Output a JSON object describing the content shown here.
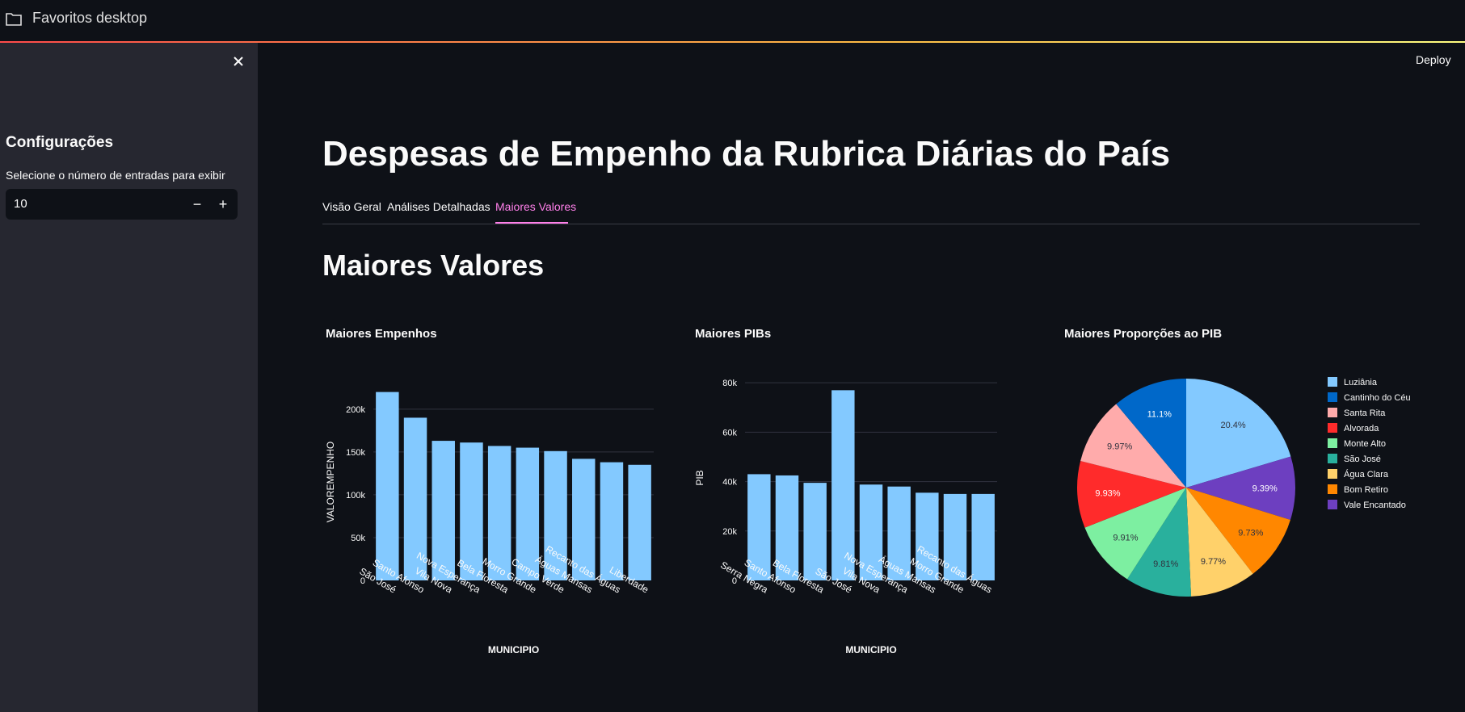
{
  "app": {
    "title": "Favoritos desktop",
    "deploy_label": "Deploy"
  },
  "sidebar": {
    "heading": "Configurações",
    "input_label": "Selecione o número de entradas para exibir",
    "input_value": "10",
    "minus": "−",
    "plus": "+"
  },
  "main": {
    "title": "Despesas de Empenho da Rubrica Diárias do País",
    "tabs": [
      {
        "label": "Visão Geral"
      },
      {
        "label": "Análises Detalhadas"
      },
      {
        "label": "Maiores Valores"
      }
    ],
    "active_tab": 2,
    "section_title": "Maiores Valores"
  },
  "colors": {
    "bar": "#83c9ff",
    "grid": "#31333f",
    "accent": "#ff80ea",
    "background": "#0e1117"
  },
  "chart_data": [
    {
      "type": "bar",
      "title": "Maiores Empenhos",
      "xlabel": "MUNICIPIO",
      "ylabel": "VALOREMPENHO",
      "categories": [
        "São José",
        "Santo Afonso",
        "Vila Nova",
        "Nova Esperança",
        "Bela Floresta",
        "Morro Grande",
        "Campo Verde",
        "Águas Mansas",
        "Recanto das Águas",
        "Liberdade"
      ],
      "values": [
        220000,
        190000,
        163000,
        161000,
        157000,
        155000,
        151000,
        142000,
        138000,
        135000
      ],
      "ylim": [
        0,
        230000
      ],
      "yticks": [
        0,
        50000,
        100000,
        150000,
        200000
      ],
      "yticklabels": [
        "0",
        "50k",
        "100k",
        "150k",
        "200k"
      ],
      "grid": true
    },
    {
      "type": "bar",
      "title": "Maiores PIBs",
      "xlabel": "MUNICIPIO",
      "ylabel": "PIB",
      "categories": [
        "Serra Negra",
        "Santo Afonso",
        "Bela Floresta",
        "São José",
        "Vila Nova",
        "Nova Esperança",
        "Águas Mansas",
        "Morro Grande",
        "Recanto das Águas"
      ],
      "values": [
        43000,
        42500,
        39500,
        77000,
        38800,
        38000,
        35500,
        35000,
        35000
      ],
      "ylim": [
        0,
        83000
      ],
      "yticks": [
        0,
        20000,
        40000,
        60000,
        80000
      ],
      "yticklabels": [
        "0",
        "20k",
        "40k",
        "60k",
        "80k"
      ],
      "grid": true
    },
    {
      "type": "pie",
      "title": "Maiores Proporções ao PIB",
      "legend_position": "right",
      "slices": [
        {
          "label": "Luziânia",
          "value": 20.4,
          "text": "20.4%",
          "color": "#83c9ff",
          "text_color": "#31333f"
        },
        {
          "label": "Vale Encantado",
          "value": 9.39,
          "text": "9.39%",
          "color": "#6d3fc0",
          "text_color": "#ffffff"
        },
        {
          "label": "Bom Retiro",
          "value": 9.73,
          "text": "9.73%",
          "color": "#ff8700",
          "text_color": "#31333f"
        },
        {
          "label": "Água Clara",
          "value": 9.77,
          "text": "9.77%",
          "color": "#ffd16a",
          "text_color": "#31333f"
        },
        {
          "label": "São José",
          "value": 9.81,
          "text": "9.81%",
          "color": "#29b09d",
          "text_color": "#31333f"
        },
        {
          "label": "Monte Alto",
          "value": 9.91,
          "text": "9.91%",
          "color": "#7defa1",
          "text_color": "#31333f"
        },
        {
          "label": "Alvorada",
          "value": 9.93,
          "text": "9.93%",
          "color": "#ff2b2b",
          "text_color": "#ffffff"
        },
        {
          "label": "Santa Rita",
          "value": 9.97,
          "text": "9.97%",
          "color": "#ffabab",
          "text_color": "#31333f"
        },
        {
          "label": "Cantinho do Céu",
          "value": 11.1,
          "text": "11.1%",
          "color": "#0068c9",
          "text_color": "#ffffff"
        }
      ],
      "legend_order": [
        "Luziânia",
        "Cantinho do Céu",
        "Santa Rita",
        "Alvorada",
        "Monte Alto",
        "São José",
        "Água Clara",
        "Bom Retiro",
        "Vale Encantado"
      ]
    }
  ]
}
